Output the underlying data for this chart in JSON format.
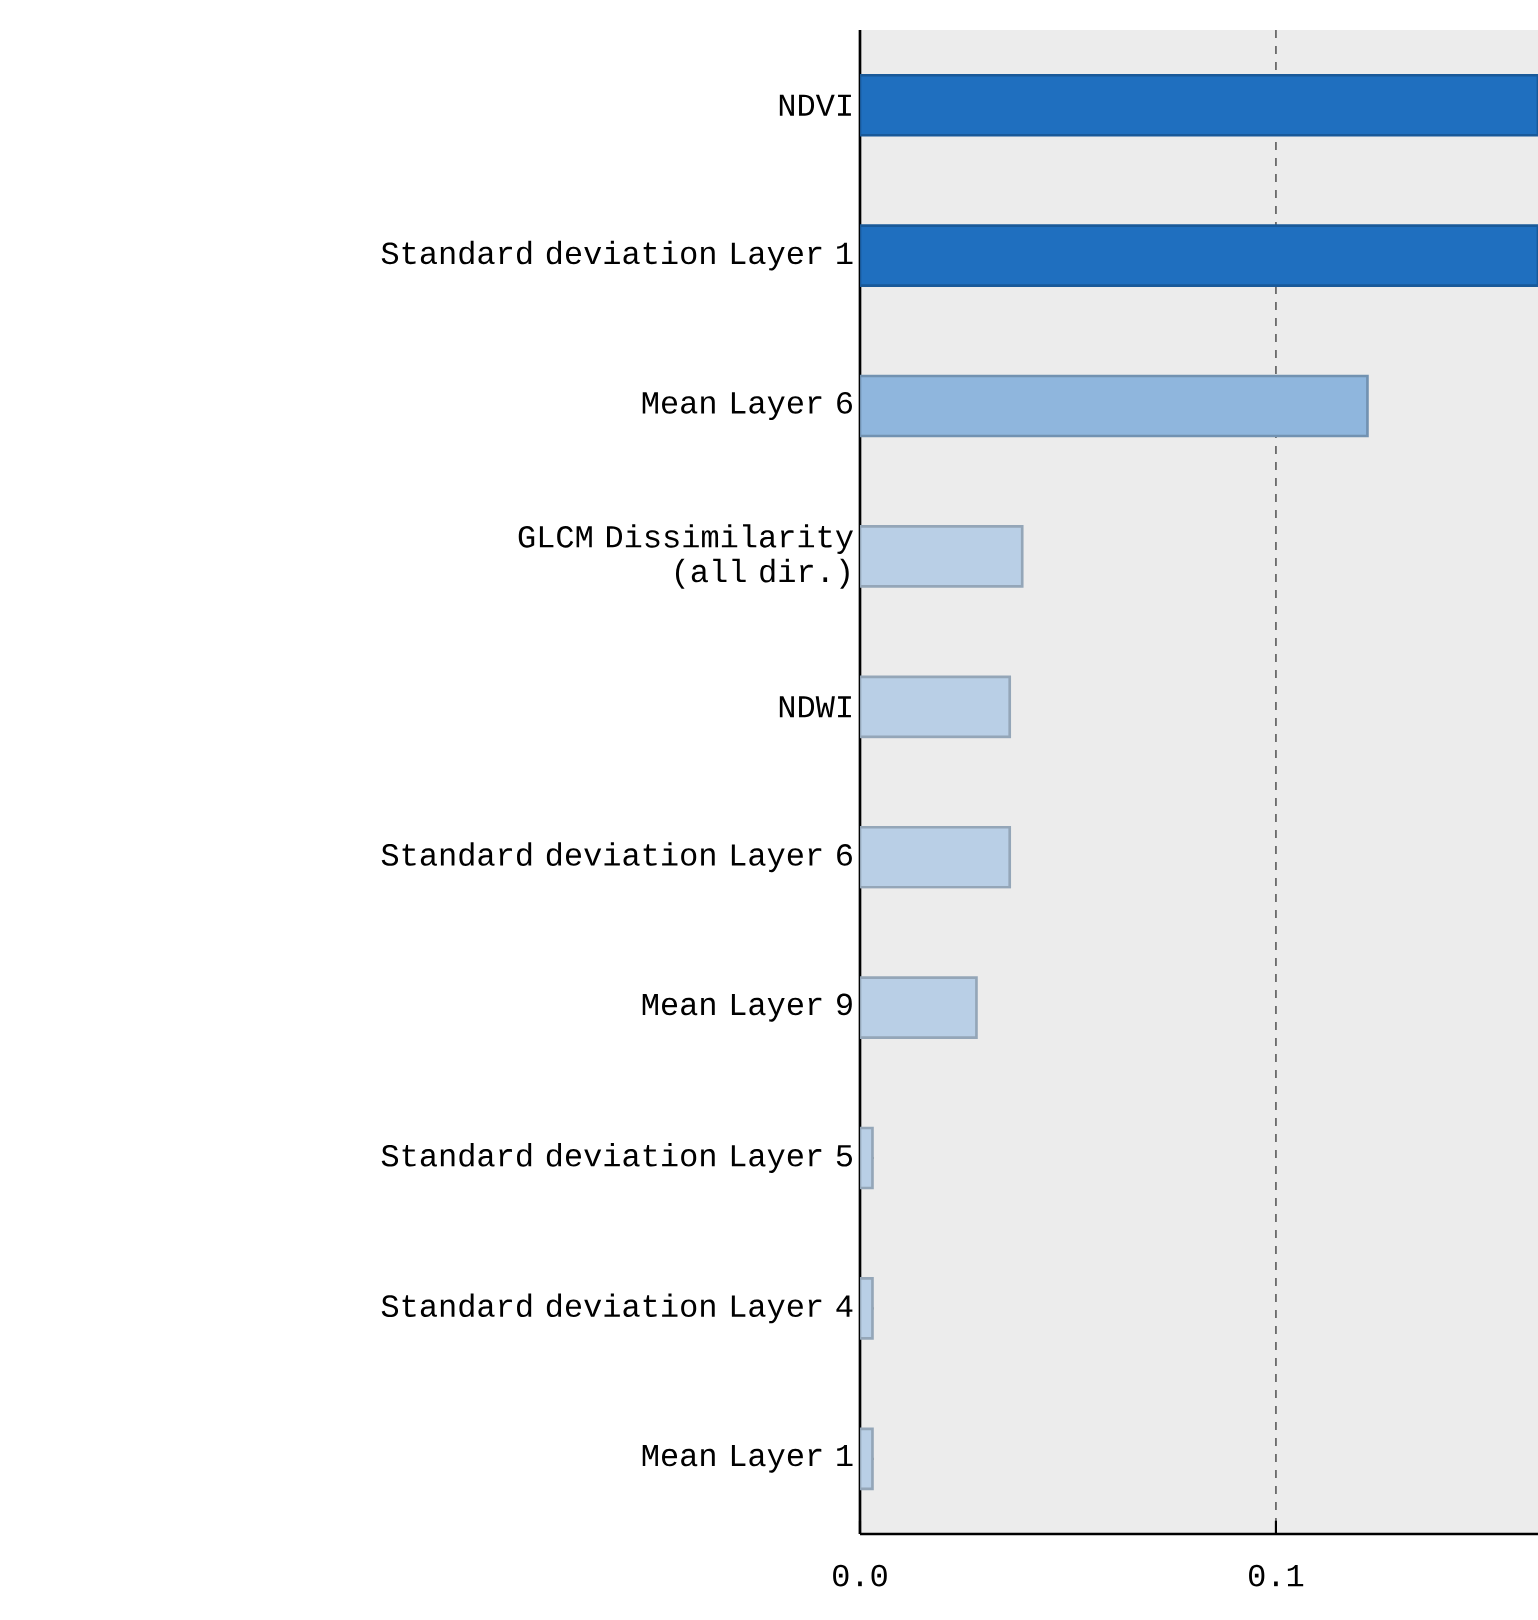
{
  "chart_data": {
    "type": "bar",
    "orientation": "horizontal",
    "categories": [
      "NDVI",
      "Standard deviation Layer 1",
      "Mean Layer 6",
      "GLCM Dissimilarity (all dir.)",
      "NDWI",
      "Standard deviation Layer 6",
      "Mean Layer 9",
      "Standard deviation Layer 5",
      "Standard deviation Layer 4",
      "Mean Layer 1"
    ],
    "values": [
      0.163,
      0.163,
      0.122,
      0.039,
      0.036,
      0.036,
      0.028,
      0.003,
      0.003,
      0.003
    ],
    "colors": [
      "#1f6fbf",
      "#1f6fbf",
      "#8fb6dd",
      "#b9cfe6",
      "#b9cfe6",
      "#b9cfe6",
      "#b9cfe6",
      "#b9cfe6",
      "#b9cfe6",
      "#b9cfe6"
    ],
    "xlim": [
      0,
      0.163
    ],
    "xticks": [
      {
        "value": 0,
        "label": "0.0"
      },
      {
        "value": 0.1,
        "label": "0.1"
      }
    ],
    "grid": "x"
  }
}
